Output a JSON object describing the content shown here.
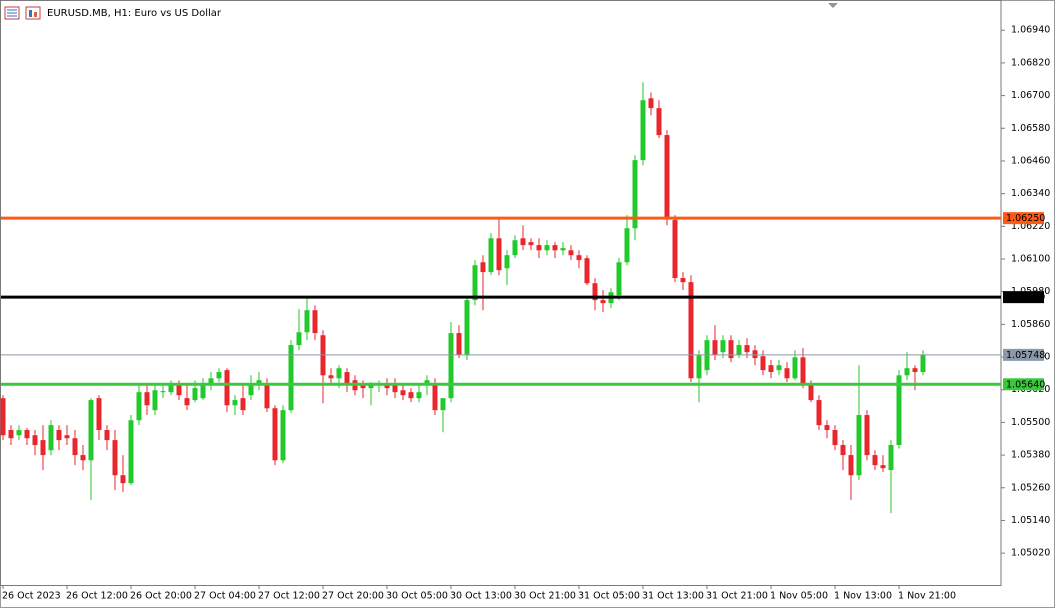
{
  "chart_data": {
    "type": "candlestick",
    "title": "EURUSD.MB, H1:  Euro vs US Dollar",
    "categories": [
      "26 Oct 2023",
      null,
      null,
      null,
      null,
      null,
      null,
      null,
      "26 Oct 12:00",
      null,
      null,
      null,
      null,
      null,
      null,
      null,
      "26 Oct 20:00",
      null,
      null,
      null,
      null,
      null,
      null,
      null,
      "27 Oct 04:00",
      null,
      null,
      null,
      null,
      null,
      null,
      null,
      "27 Oct 12:00",
      null,
      null,
      null,
      null,
      null,
      null,
      null,
      "27 Oct 20:00",
      null,
      null,
      null,
      null,
      null,
      null,
      null,
      "30 Oct 05:00",
      null,
      null,
      null,
      null,
      null,
      null,
      null,
      "30 Oct 13:00",
      null,
      null,
      null,
      null,
      null,
      null,
      null,
      "30 Oct 21:00",
      null,
      null,
      null,
      null,
      null,
      null,
      null,
      "31 Oct 05:00",
      null,
      null,
      null,
      null,
      null,
      null,
      null,
      "31 Oct 13:00",
      null,
      null,
      null,
      null,
      null,
      null,
      null,
      "31 Oct 21:00",
      null,
      null,
      null,
      null,
      null,
      null,
      null,
      "1 Nov 05:00",
      null,
      null,
      null,
      null,
      null,
      null,
      null,
      "1 Nov 13:00",
      null,
      null,
      null,
      null,
      null,
      null,
      null,
      "1 Nov 21:00",
      null,
      null,
      null
    ],
    "open": [
      1.05589,
      1.05472,
      1.05453,
      1.05472,
      1.05453,
      1.05435,
      1.05398,
      1.05472,
      1.05453,
      1.05442,
      1.0538,
      1.05361,
      1.05589,
      1.05472,
      1.05435,
      1.05306,
      1.05277,
      1.05508,
      1.05611,
      1.05545,
      1.05611,
      1.05611,
      1.05637,
      1.05589,
      1.05582,
      1.05589,
      1.05637,
      1.05662,
      1.05692,
      1.05563,
      1.05589,
      1.056,
      1.05637,
      1.05637,
      1.05552,
      1.05361,
      1.05545,
      1.05784,
      1.05831,
      1.05912,
      1.0582,
      1.05673,
      1.05662,
      1.05685,
      1.05655,
      1.05637,
      1.05626,
      1.05637,
      1.05644,
      1.05637,
      1.05618,
      1.05611,
      1.05589,
      1.05637,
      1.05644,
      1.05545,
      1.05589,
      1.05828,
      1.05747,
      1.05949,
      1.06088,
      1.06052,
      1.06176,
      1.06066,
      1.06114,
      1.06176,
      1.06162,
      1.06151,
      1.06132,
      1.06151,
      1.06132,
      1.06132,
      1.06114,
      1.06103,
      1.06011,
      1.05949,
      1.05938,
      1.05967,
      1.06088,
      1.06213,
      1.06463,
      1.0669,
      1.06654,
      1.06555,
      1.06243,
      1.0603,
      1.06015,
      1.05662,
      1.05692,
      1.05802,
      1.05758,
      1.05802,
      1.05747,
      1.05784,
      1.05765,
      1.05743,
      1.0571,
      1.05692,
      1.05699,
      1.05662,
      1.05739,
      1.0564,
      1.05582,
      1.0549,
      1.05472,
      1.05417,
      1.0538,
      1.05306,
      1.05527,
      1.0538,
      1.05343,
      1.05325,
      1.05417,
      1.05673,
      1.05699,
      1.05685
    ],
    "high": [
      1.056,
      1.0549,
      1.0549,
      1.0548,
      1.05472,
      1.0549,
      1.05508,
      1.0549,
      1.0549,
      1.05472,
      1.05417,
      1.05589,
      1.056,
      1.0549,
      1.05472,
      1.0538,
      1.05527,
      1.05637,
      1.05637,
      1.05637,
      1.05644,
      1.05655,
      1.05655,
      1.05637,
      1.05655,
      1.05662,
      1.05685,
      1.05699,
      1.05699,
      1.056,
      1.05637,
      1.05673,
      1.05685,
      1.05662,
      1.05563,
      1.05563,
      1.05802,
      1.05916,
      1.05963,
      1.0593,
      1.05839,
      1.05699,
      1.0571,
      1.05699,
      1.05673,
      1.05655,
      1.05648,
      1.05655,
      1.05662,
      1.05662,
      1.05637,
      1.05626,
      1.05637,
      1.05673,
      1.05662,
      1.05589,
      1.05868,
      1.05857,
      1.05956,
      1.06096,
      1.06114,
      1.06195,
      1.0625,
      1.06132,
      1.06187,
      1.06224,
      1.06176,
      1.06176,
      1.06169,
      1.06162,
      1.06162,
      1.06151,
      1.06132,
      1.06114,
      1.0603,
      1.05986,
      1.05993,
      1.06103,
      1.06261,
      1.06481,
      1.06749,
      1.06712,
      1.06683,
      1.06573,
      1.06261,
      1.06052,
      1.06041,
      1.05765,
      1.0582,
      1.05857,
      1.0582,
      1.0582,
      1.05802,
      1.05809,
      1.05784,
      1.05765,
      1.05729,
      1.05729,
      1.05721,
      1.05765,
      1.05773,
      1.05655,
      1.056,
      1.05508,
      1.0549,
      1.05435,
      1.05417,
      1.0571,
      1.05545,
      1.05398,
      1.0538,
      1.05435,
      1.05692,
      1.05758,
      1.0571,
      1.05765
    ],
    "low": [
      1.05435,
      1.05417,
      1.05435,
      1.05417,
      1.0538,
      1.05325,
      1.0538,
      1.05398,
      1.05417,
      1.05343,
      1.05325,
      1.05215,
      1.05435,
      1.05398,
      1.05251,
      1.05244,
      1.0527,
      1.0549,
      1.05527,
      1.05527,
      1.05589,
      1.056,
      1.05582,
      1.05545,
      1.05574,
      1.05582,
      1.05618,
      1.05648,
      1.05538,
      1.05527,
      1.05527,
      1.05582,
      1.05618,
      1.05538,
      1.05343,
      1.0535,
      1.05534,
      1.05765,
      1.05802,
      1.05802,
      1.05571,
      1.05637,
      1.05626,
      1.05611,
      1.056,
      1.05589,
      1.05563,
      1.05611,
      1.056,
      1.05589,
      1.05582,
      1.05574,
      1.05574,
      1.056,
      1.05527,
      1.05464,
      1.05574,
      1.05736,
      1.05729,
      1.0593,
      1.05912,
      1.06041,
      1.06041,
      1.06004,
      1.06103,
      1.06132,
      1.06132,
      1.06103,
      1.06114,
      1.06103,
      1.06114,
      1.06096,
      1.06066,
      1.06004,
      1.05912,
      1.05905,
      1.0592,
      1.05949,
      1.06077,
      1.06169,
      1.06444,
      1.06628,
      1.06544,
      1.06224,
      1.06015,
      1.05986,
      1.05648,
      1.05574,
      1.05673,
      1.05729,
      1.05736,
      1.05721,
      1.05736,
      1.05736,
      1.0571,
      1.05673,
      1.05662,
      1.05673,
      1.05648,
      1.05655,
      1.05626,
      1.05574,
      1.05472,
      1.05442,
      1.05398,
      1.05325,
      1.05215,
      1.05288,
      1.05361,
      1.05325,
      1.05318,
      1.05167,
      1.05404,
      1.05655,
      1.05618,
      1.05673
    ],
    "close": [
      1.05453,
      1.05442,
      1.05472,
      1.05442,
      1.05417,
      1.0538,
      1.0549,
      1.05435,
      1.05442,
      1.0538,
      1.05361,
      1.05582,
      1.05472,
      1.05435,
      1.05306,
      1.05277,
      1.05508,
      1.05611,
      1.05563,
      1.05618,
      1.05615,
      1.05637,
      1.056,
      1.05563,
      1.05626,
      1.05637,
      1.05662,
      1.05685,
      1.05563,
      1.05582,
      1.05545,
      1.05637,
      1.05655,
      1.05552,
      1.05361,
      1.05545,
      1.05784,
      1.05831,
      1.05912,
      1.05828,
      1.05673,
      1.05662,
      1.05699,
      1.05637,
      1.05618,
      1.05626,
      1.05637,
      1.05644,
      1.05626,
      1.05611,
      1.056,
      1.05589,
      1.05611,
      1.05655,
      1.05545,
      1.05589,
      1.05828,
      1.05747,
      1.05949,
      1.06077,
      1.06052,
      1.06176,
      1.06059,
      1.06114,
      1.06169,
      1.06151,
      1.06151,
      1.06132,
      1.06151,
      1.06132,
      1.0614,
      1.06114,
      1.06096,
      1.06011,
      1.05949,
      1.05938,
      1.05978,
      1.06088,
      1.06213,
      1.06463,
      1.06683,
      1.06654,
      1.06555,
      1.0625,
      1.0603,
      1.06015,
      1.05662,
      1.05747,
      1.05802,
      1.05747,
      1.05802,
      1.05736,
      1.05784,
      1.05758,
      1.05736,
      1.05692,
      1.05685,
      1.0571,
      1.05662,
      1.05739,
      1.0564,
      1.05582,
      1.0549,
      1.05472,
      1.05417,
      1.0538,
      1.05306,
      1.05527,
      1.0538,
      1.05343,
      1.05332,
      1.05417,
      1.05673,
      1.05699,
      1.05685,
      1.05748
    ],
    "up_color": "#22c92a",
    "down_color": "#e8262c",
    "ylim": [
      1.04903,
      1.07051
    ],
    "yticks": [
      {
        "value": 1.0502,
        "label": "1.05020"
      },
      {
        "value": 1.0514,
        "label": "1.05140"
      },
      {
        "value": 1.0526,
        "label": "1.05260"
      },
      {
        "value": 1.0538,
        "label": "1.05380"
      },
      {
        "value": 1.055,
        "label": "1.05500"
      },
      {
        "value": 1.0562,
        "label": "1.05620"
      },
      {
        "value": 1.0574,
        "label": "1.05740"
      },
      {
        "value": 1.0586,
        "label": "1.05860"
      },
      {
        "value": 1.0598,
        "label": "1.05980"
      },
      {
        "value": 1.061,
        "label": "1.06100"
      },
      {
        "value": 1.0622,
        "label": "1.06220"
      },
      {
        "value": 1.0634,
        "label": "1.06340"
      },
      {
        "value": 1.0646,
        "label": "1.06460"
      },
      {
        "value": 1.0658,
        "label": "1.06580"
      },
      {
        "value": 1.067,
        "label": "1.06700"
      },
      {
        "value": 1.0682,
        "label": "1.06820"
      },
      {
        "value": 1.0694,
        "label": "1.06940"
      }
    ],
    "levels": [
      {
        "value": 1.0625,
        "label": "1.06250",
        "color": "#ff5a14",
        "width": 3
      },
      {
        "value": 1.0596,
        "label": "1.05960",
        "color": "#000000",
        "width": 3
      },
      {
        "value": 1.05748,
        "label": "1.05748",
        "color": "#8c98a8",
        "width": 1
      },
      {
        "value": 1.0564,
        "label": "1.05640",
        "color": "#3cc83c",
        "width": 3
      }
    ],
    "grid": false
  }
}
